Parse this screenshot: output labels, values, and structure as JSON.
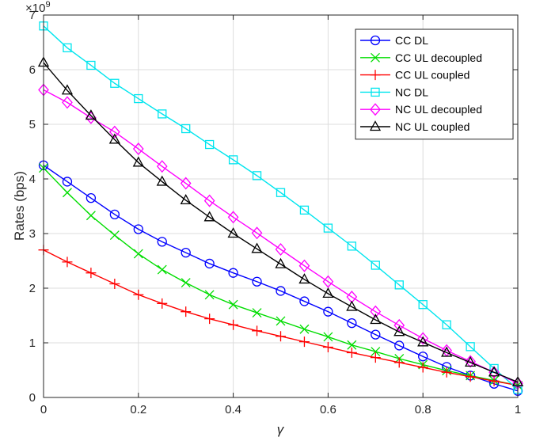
{
  "chart_data": {
    "type": "line",
    "title": "",
    "xlabel": "γ",
    "ylabel": "Rates (bps)",
    "y_multiplier": "×10",
    "y_multiplier_exp": "9",
    "xlim": [
      0,
      1
    ],
    "ylim": [
      0,
      7
    ],
    "x_ticks": [
      "0",
      "0.2",
      "0.4",
      "0.6",
      "0.8",
      "1"
    ],
    "y_ticks": [
      "0",
      "1",
      "2",
      "3",
      "4",
      "5",
      "6",
      "7"
    ],
    "grid": true,
    "legend_position": "top-right",
    "x": [
      0,
      0.05,
      0.1,
      0.15,
      0.2,
      0.25,
      0.3,
      0.35,
      0.4,
      0.45,
      0.5,
      0.55,
      0.6,
      0.65,
      0.7,
      0.75,
      0.8,
      0.85,
      0.9,
      0.95,
      1
    ],
    "series": [
      {
        "name": "CC DL",
        "color": "#0000ff",
        "marker": "circle",
        "values": [
          4.25,
          3.95,
          3.65,
          3.35,
          3.08,
          2.85,
          2.65,
          2.45,
          2.28,
          2.12,
          1.95,
          1.76,
          1.57,
          1.36,
          1.15,
          0.95,
          0.75,
          0.56,
          0.4,
          0.25,
          0.12
        ]
      },
      {
        "name": "CC UL decoupled",
        "color": "#00dd00",
        "marker": "x",
        "values": [
          4.2,
          3.75,
          3.33,
          2.97,
          2.63,
          2.34,
          2.1,
          1.88,
          1.7,
          1.55,
          1.4,
          1.25,
          1.11,
          0.96,
          0.84,
          0.71,
          0.6,
          0.49,
          0.4,
          0.31,
          0.22
        ]
      },
      {
        "name": "CC UL coupled",
        "color": "#ff0000",
        "marker": "plus",
        "values": [
          2.7,
          2.48,
          2.28,
          2.08,
          1.88,
          1.72,
          1.57,
          1.44,
          1.33,
          1.22,
          1.12,
          1.02,
          0.92,
          0.82,
          0.73,
          0.64,
          0.55,
          0.46,
          0.38,
          0.3,
          0.22
        ]
      },
      {
        "name": "NC DL",
        "color": "#00e5ee",
        "marker": "square",
        "values": [
          6.8,
          6.4,
          6.08,
          5.75,
          5.47,
          5.19,
          4.92,
          4.63,
          4.35,
          4.06,
          3.75,
          3.43,
          3.1,
          2.77,
          2.42,
          2.06,
          1.7,
          1.33,
          0.93,
          0.53,
          0.15
        ]
      },
      {
        "name": "NC UL decoupled",
        "color": "#ff00ff",
        "marker": "diamond",
        "values": [
          5.63,
          5.4,
          5.12,
          4.86,
          4.55,
          4.23,
          3.92,
          3.6,
          3.3,
          3.01,
          2.71,
          2.41,
          2.12,
          1.84,
          1.57,
          1.32,
          1.08,
          0.86,
          0.66,
          0.46,
          0.26
        ]
      },
      {
        "name": "NC UL coupled",
        "color": "#000000",
        "marker": "triangle",
        "values": [
          6.13,
          5.62,
          5.16,
          4.72,
          4.3,
          3.95,
          3.61,
          3.3,
          3.0,
          2.72,
          2.44,
          2.16,
          1.9,
          1.66,
          1.42,
          1.2,
          1.01,
          0.82,
          0.64,
          0.46,
          0.28
        ]
      }
    ]
  }
}
